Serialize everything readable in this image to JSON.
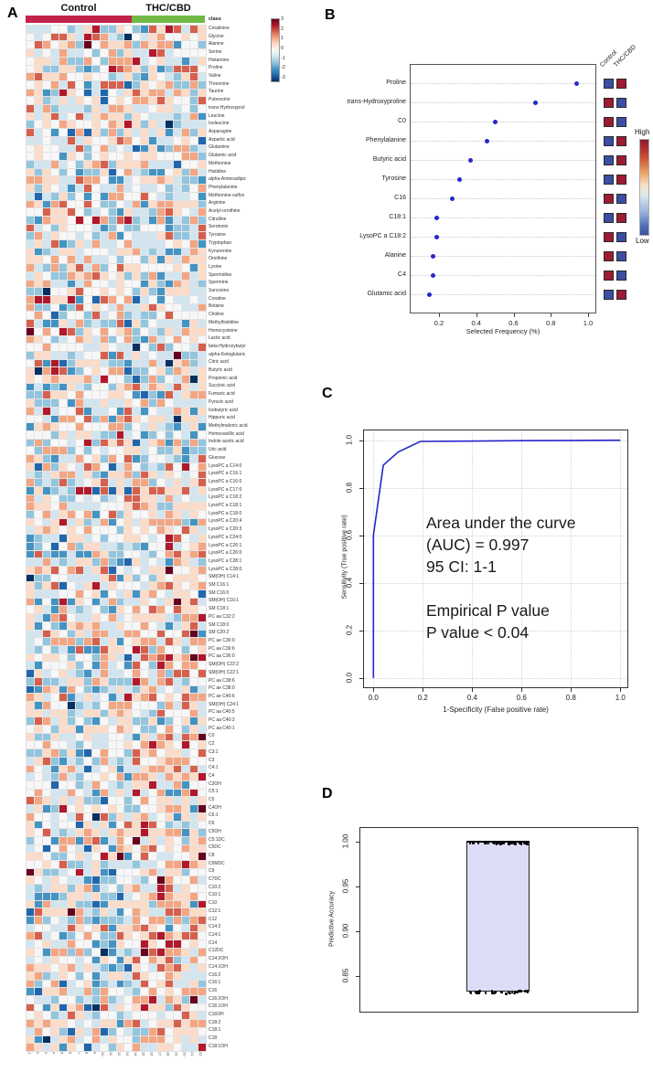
{
  "panel_labels": {
    "a": "A",
    "b": "B",
    "c": "C",
    "d": "D"
  },
  "chart_data": [
    {
      "id": "A",
      "type": "heatmap",
      "groups": [
        {
          "label": "Control",
          "color": "#c2234a",
          "cols": 13
        },
        {
          "label": "THC/CBD",
          "color": "#72b844",
          "cols": 9
        }
      ],
      "class_label": "class",
      "n_cols": 22,
      "col_labels": [
        "1",
        "2",
        "3",
        "4",
        "5",
        "6",
        "7",
        "8",
        "9",
        "10",
        "11",
        "12",
        "13",
        "14",
        "15",
        "16",
        "17",
        "18",
        "19",
        "20",
        "21",
        "22"
      ],
      "rows": [
        "Creatinine",
        "Glycine",
        "Alanine",
        "Serine",
        "Histamine",
        "Proline",
        "Valine",
        "Threonine",
        "Taurine",
        "Putrescine",
        "trans-Hydroxyprol",
        "Leucine",
        "Isoleucine",
        "Asparagine",
        "Aspartic acid",
        "Glutamine",
        "Glutamic acid",
        "Methionine",
        "Histidine",
        "alpha-Aminoadipic",
        "Phenylalanine",
        "Methionine-sulfox",
        "Arginine",
        "Acetyl-ornithine",
        "Citrulline",
        "Serotonin",
        "Tyrosine",
        "Tryptophan",
        "Kynurenine",
        "Ornithine",
        "Lysine",
        "Spermidine",
        "Spermine",
        "Sarcosine",
        "Creatine",
        "Betaine",
        "Choline",
        "Methylhistidine",
        "Homocysteine",
        "Lactic acid",
        "beta-Hydroxybutyr",
        "alpha-Ketoglutaric",
        "Citric acid",
        "Butyric acid",
        "Propionic acid",
        "Succinic acid",
        "Fumaric acid",
        "Pyruvic acid",
        "Isobutyric acid",
        "Hippuric acid",
        "Methylmalonic acid",
        "Homovanillic acid",
        "Indole acetic acid",
        "Uric acid",
        "Glucose",
        "LysoPC a C14:0",
        "LysoPC a C16:1",
        "LysoPC a C16:0",
        "LysoPC a C17:0",
        "LysoPC a C18:2",
        "LysoPC a C18:1",
        "LysoPC a C18:0",
        "LysoPC a C20:4",
        "LysoPC a C20:3",
        "LysoPC a C24:0",
        "LysoPC a C26:1",
        "LysoPC a C26:0",
        "LysoPC a C28:1",
        "LysoPC a C28:0",
        "SM(OH) C14:1",
        "SM C16:1",
        "SM C16:0",
        "SM(OH) C16:1",
        "SM C18:1",
        "PC aa C32:2",
        "SM C18:0",
        "SM C20:2",
        "PC ae C36:0",
        "PC aa C36:6",
        "PC aa C36:0",
        "SM(OH) C22:2",
        "SM(OH) C22:1",
        "PC aa C38:6",
        "PC ae C38:0",
        "PC ae C40:6",
        "SM(OH) C24:1",
        "PC aa C40:5",
        "PC aa C40:2",
        "PC aa C40:1",
        "C0",
        "C2",
        "C3:1",
        "C3",
        "C4:1",
        "C4",
        "C3OH",
        "C5:1",
        "C5",
        "C4OH",
        "C6:1",
        "C6",
        "C5OH",
        "C5:1DC",
        "C5DC",
        "C8",
        "C5MDC",
        "C9",
        "C7DC",
        "C10:2",
        "C10:1",
        "C10",
        "C12:1",
        "C12",
        "C14:2",
        "C14:1",
        "C14",
        "C12DC",
        "C14:2OH",
        "C14:1OH",
        "C16:2",
        "C16:1",
        "C16",
        "C16:2OH",
        "C16:1OH",
        "C16OH",
        "C18:2",
        "C18:1",
        "C18",
        "C18:1OH"
      ],
      "colorbar_ticks": [
        "3",
        "2",
        "1",
        "0",
        "-1",
        "-2",
        "-3"
      ],
      "zlim": [
        -3,
        3
      ],
      "palette": [
        "#053061",
        "#2166ac",
        "#4393c3",
        "#92c5de",
        "#d1e5f0",
        "#f7f7f7",
        "#fddbc7",
        "#f4a582",
        "#d6604d",
        "#b2182b",
        "#67001f"
      ],
      "cells_seed": 7
    },
    {
      "id": "B",
      "type": "scatter",
      "xlabel": "Selected Frequency (%)",
      "xticks": [
        "0.2",
        "0.4",
        "0.6",
        "0.8",
        "1.0"
      ],
      "dot_color": "#2828c8",
      "square_columns": [
        "Control",
        "THC/CBD"
      ],
      "legend": {
        "high_label": "High",
        "low_label": "Low",
        "high_color": "#9e1b32",
        "low_color": "#3b4ea3"
      },
      "items": [
        {
          "label": "Proline",
          "value": 0.94,
          "control": "low",
          "thc": "high"
        },
        {
          "label": "trans-Hydroxyproline",
          "value": 0.72,
          "control": "high",
          "thc": "low"
        },
        {
          "label": "C0",
          "value": 0.5,
          "control": "high",
          "thc": "low"
        },
        {
          "label": "Phenylalanine",
          "value": 0.46,
          "control": "low",
          "thc": "high"
        },
        {
          "label": "Butyric acid",
          "value": 0.37,
          "control": "low",
          "thc": "high"
        },
        {
          "label": "Tyrosine",
          "value": 0.31,
          "control": "low",
          "thc": "high"
        },
        {
          "label": "C16",
          "value": 0.27,
          "control": "high",
          "thc": "low"
        },
        {
          "label": "C18:1",
          "value": 0.19,
          "control": "low",
          "thc": "high"
        },
        {
          "label": "LysoPC a C18:2",
          "value": 0.19,
          "control": "high",
          "thc": "low"
        },
        {
          "label": "Alanine",
          "value": 0.17,
          "control": "high",
          "thc": "low"
        },
        {
          "label": "C4",
          "value": 0.17,
          "control": "high",
          "thc": "low"
        },
        {
          "label": "Glutamic acid",
          "value": 0.15,
          "control": "low",
          "thc": "high"
        }
      ]
    },
    {
      "id": "C",
      "type": "line",
      "xlabel": "1-Specificity (False positive rate)",
      "ylabel": "Sensitivity (True positive rate)",
      "xticks": [
        "0.0",
        "0.2",
        "0.4",
        "0.6",
        "0.8",
        "1.0"
      ],
      "yticks": [
        "0.0",
        "0.2",
        "0.4",
        "0.6",
        "0.8",
        "1.0"
      ],
      "line_color": "#2424cc",
      "roc_points": [
        [
          0,
          0
        ],
        [
          0,
          0.6
        ],
        [
          0.04,
          0.895
        ],
        [
          0.1,
          0.95
        ],
        [
          0.19,
          0.995
        ],
        [
          0.6,
          0.998
        ],
        [
          1,
          1
        ]
      ],
      "annotation_lines": [
        "Area under the curve",
        "(AUC) = 0.997",
        "95 CI: 1-1",
        "",
        "Empirical P value",
        "P value < 0.04"
      ]
    },
    {
      "id": "D",
      "type": "box",
      "ylabel": "Predictive Accuracy",
      "yticks": [
        "1.00",
        "0.95",
        "0.90",
        "0.85"
      ],
      "box": {
        "lower": 0.833,
        "upper": 1.0,
        "fill": "#dcdcf7",
        "median": 1.0
      },
      "point_clusters": [
        {
          "value": 1.0,
          "n": 46
        },
        {
          "value": 0.833,
          "n": 32
        }
      ],
      "points_seed": 3
    }
  ]
}
